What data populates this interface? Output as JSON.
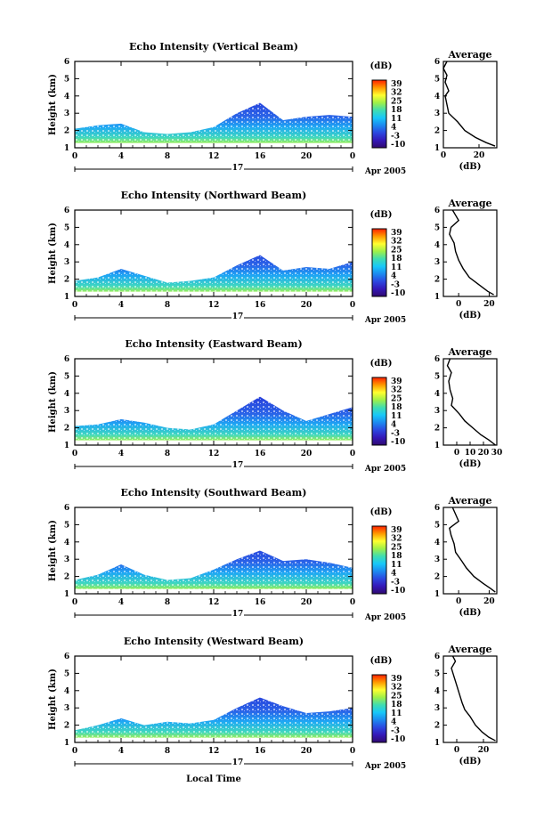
{
  "figure": {
    "x_axis_label": "Local Time",
    "date_label": "Apr 2005",
    "day_label": "17",
    "y_axis_label": "Height (km)",
    "x_ticks": [
      "0",
      "4",
      "8",
      "12",
      "16",
      "20",
      "0"
    ],
    "y_ticks": [
      "1",
      "2",
      "3",
      "4",
      "5",
      "6"
    ],
    "colorbar_unit": "(dB)",
    "colorbar_ticks": [
      "39",
      "32",
      "25",
      "18",
      "11",
      "4",
      "-3",
      "-10"
    ],
    "avg_title": "Average",
    "avg_xlabel": "(dB)"
  },
  "colors": {
    "colorbar_gradient": [
      "#ff2000",
      "#ff9a00",
      "#ffff30",
      "#9ff048",
      "#40ddb0",
      "#18c8f8",
      "#1c8af0",
      "#2c48e0",
      "#3418b8",
      "#300a70"
    ]
  },
  "chart_data": [
    {
      "type": "heatmap",
      "title": "Echo Intensity (Vertical Beam)",
      "x_range_hours": [
        0,
        24
      ],
      "ylim_km": [
        1,
        6
      ],
      "colorbar_range_db": [
        -10,
        39
      ],
      "echo_profile": [
        {
          "t": 0,
          "top_km": 2.1
        },
        {
          "t": 2,
          "top_km": 2.3
        },
        {
          "t": 4,
          "top_km": 2.4
        },
        {
          "t": 6,
          "top_km": 1.9
        },
        {
          "t": 8,
          "top_km": 1.8
        },
        {
          "t": 10,
          "top_km": 1.9
        },
        {
          "t": 12,
          "top_km": 2.2
        },
        {
          "t": 14,
          "top_km": 3.0
        },
        {
          "t": 16,
          "top_km": 3.6
        },
        {
          "t": 18,
          "top_km": 2.6
        },
        {
          "t": 20,
          "top_km": 2.8
        },
        {
          "t": 22,
          "top_km": 2.9
        },
        {
          "t": 24,
          "top_km": 2.8
        }
      ],
      "average_panel": {
        "xlim_db": [
          0,
          30
        ],
        "x_ticks": [
          "0",
          "20"
        ],
        "profile": [
          {
            "db": 2,
            "h": 6.0
          },
          {
            "db": 0,
            "h": 5.6
          },
          {
            "db": 2,
            "h": 5.2
          },
          {
            "db": 1,
            "h": 4.8
          },
          {
            "db": 3,
            "h": 4.3
          },
          {
            "db": 1,
            "h": 4.0
          },
          {
            "db": 2,
            "h": 3.5
          },
          {
            "db": 3,
            "h": 3.0
          },
          {
            "db": 8,
            "h": 2.5
          },
          {
            "db": 12,
            "h": 2.0
          },
          {
            "db": 18,
            "h": 1.6
          },
          {
            "db": 24,
            "h": 1.3
          },
          {
            "db": 29,
            "h": 1.1
          }
        ]
      }
    },
    {
      "type": "heatmap",
      "title": "Echo Intensity (Northward Beam)",
      "x_range_hours": [
        0,
        24
      ],
      "ylim_km": [
        1,
        6
      ],
      "colorbar_range_db": [
        -10,
        39
      ],
      "colorbar_ticks": [
        "39",
        "32",
        "25",
        "18",
        "11",
        "4",
        "-3",
        "-10"
      ],
      "echo_profile": [
        {
          "t": 0,
          "top_km": 1.9
        },
        {
          "t": 2,
          "top_km": 2.1
        },
        {
          "t": 4,
          "top_km": 2.6
        },
        {
          "t": 6,
          "top_km": 2.2
        },
        {
          "t": 8,
          "top_km": 1.8
        },
        {
          "t": 10,
          "top_km": 1.9
        },
        {
          "t": 12,
          "top_km": 2.1
        },
        {
          "t": 14,
          "top_km": 2.8
        },
        {
          "t": 16,
          "top_km": 3.4
        },
        {
          "t": 18,
          "top_km": 2.5
        },
        {
          "t": 20,
          "top_km": 2.7
        },
        {
          "t": 22,
          "top_km": 2.6
        },
        {
          "t": 24,
          "top_km": 3.0
        }
      ],
      "average_panel": {
        "xlim_db": [
          -10,
          25
        ],
        "x_ticks": [
          "0",
          "20"
        ],
        "profile": [
          {
            "db": -4,
            "h": 6.0
          },
          {
            "db": -2,
            "h": 5.7
          },
          {
            "db": 0,
            "h": 5.4
          },
          {
            "db": -5,
            "h": 5.0
          },
          {
            "db": -6,
            "h": 4.6
          },
          {
            "db": -3,
            "h": 4.1
          },
          {
            "db": -2,
            "h": 3.6
          },
          {
            "db": 0,
            "h": 3.1
          },
          {
            "db": 3,
            "h": 2.6
          },
          {
            "db": 7,
            "h": 2.1
          },
          {
            "db": 13,
            "h": 1.7
          },
          {
            "db": 19,
            "h": 1.3
          },
          {
            "db": 23,
            "h": 1.1
          }
        ]
      }
    },
    {
      "type": "heatmap",
      "title": "Echo Intensity (Eastward Beam)",
      "x_range_hours": [
        0,
        24
      ],
      "ylim_km": [
        1,
        6
      ],
      "colorbar_range_db": [
        -10,
        39
      ],
      "colorbar_ticks": [
        "39",
        "32",
        "25",
        "18",
        "11",
        "4",
        "-3",
        "-10"
      ],
      "echo_profile": [
        {
          "t": 0,
          "top_km": 2.1
        },
        {
          "t": 2,
          "top_km": 2.2
        },
        {
          "t": 4,
          "top_km": 2.5
        },
        {
          "t": 6,
          "top_km": 2.3
        },
        {
          "t": 8,
          "top_km": 2.0
        },
        {
          "t": 10,
          "top_km": 1.9
        },
        {
          "t": 12,
          "top_km": 2.2
        },
        {
          "t": 14,
          "top_km": 3.0
        },
        {
          "t": 16,
          "top_km": 3.8
        },
        {
          "t": 18,
          "top_km": 3.0
        },
        {
          "t": 20,
          "top_km": 2.4
        },
        {
          "t": 22,
          "top_km": 2.8
        },
        {
          "t": 24,
          "top_km": 3.2
        }
      ],
      "average_panel": {
        "xlim_db": [
          -10,
          30
        ],
        "x_ticks": [
          "0",
          "10",
          "20",
          "30"
        ],
        "profile": [
          {
            "db": -5,
            "h": 6.0
          },
          {
            "db": -7,
            "h": 5.6
          },
          {
            "db": -4,
            "h": 5.2
          },
          {
            "db": -6,
            "h": 4.7
          },
          {
            "db": -5,
            "h": 4.2
          },
          {
            "db": -3,
            "h": 3.7
          },
          {
            "db": -4,
            "h": 3.3
          },
          {
            "db": 2,
            "h": 2.8
          },
          {
            "db": 6,
            "h": 2.4
          },
          {
            "db": 12,
            "h": 2.0
          },
          {
            "db": 18,
            "h": 1.6
          },
          {
            "db": 24,
            "h": 1.3
          },
          {
            "db": 29,
            "h": 1.0
          }
        ]
      }
    },
    {
      "type": "heatmap",
      "title": "Echo Intensity (Southward Beam)",
      "x_range_hours": [
        0,
        24
      ],
      "ylim_km": [
        1,
        6
      ],
      "colorbar_range_db": [
        -10,
        39
      ],
      "colorbar_ticks": [
        "39",
        "32",
        "25",
        "18",
        "11",
        "4",
        "-3",
        "-10"
      ],
      "echo_profile": [
        {
          "t": 0,
          "top_km": 1.8
        },
        {
          "t": 2,
          "top_km": 2.1
        },
        {
          "t": 4,
          "top_km": 2.7
        },
        {
          "t": 6,
          "top_km": 2.1
        },
        {
          "t": 8,
          "top_km": 1.8
        },
        {
          "t": 10,
          "top_km": 1.9
        },
        {
          "t": 12,
          "top_km": 2.4
        },
        {
          "t": 14,
          "top_km": 3.0
        },
        {
          "t": 16,
          "top_km": 3.5
        },
        {
          "t": 18,
          "top_km": 2.9
        },
        {
          "t": 20,
          "top_km": 3.0
        },
        {
          "t": 22,
          "top_km": 2.8
        },
        {
          "t": 24,
          "top_km": 2.5
        }
      ],
      "average_panel": {
        "xlim_db": [
          -10,
          25
        ],
        "x_ticks": [
          "0",
          "20"
        ],
        "profile": [
          {
            "db": -4,
            "h": 6.0
          },
          {
            "db": -2,
            "h": 5.6
          },
          {
            "db": 0,
            "h": 5.2
          },
          {
            "db": -6,
            "h": 4.8
          },
          {
            "db": -5,
            "h": 4.4
          },
          {
            "db": -3,
            "h": 3.9
          },
          {
            "db": -2,
            "h": 3.4
          },
          {
            "db": 2,
            "h": 2.9
          },
          {
            "db": 5,
            "h": 2.5
          },
          {
            "db": 10,
            "h": 2.0
          },
          {
            "db": 16,
            "h": 1.6
          },
          {
            "db": 21,
            "h": 1.3
          },
          {
            "db": 24,
            "h": 1.1
          }
        ]
      }
    },
    {
      "type": "heatmap",
      "title": "Echo Intensity (Westward Beam)",
      "x_range_hours": [
        0,
        24
      ],
      "ylim_km": [
        1,
        6
      ],
      "colorbar_range_db": [
        -10,
        39
      ],
      "colorbar_ticks": [
        "39",
        "32",
        "25",
        "18",
        "11",
        "4",
        "-3",
        "-10"
      ],
      "echo_profile": [
        {
          "t": 0,
          "top_km": 1.7
        },
        {
          "t": 2,
          "top_km": 2.0
        },
        {
          "t": 4,
          "top_km": 2.4
        },
        {
          "t": 6,
          "top_km": 2.0
        },
        {
          "t": 8,
          "top_km": 2.2
        },
        {
          "t": 10,
          "top_km": 2.1
        },
        {
          "t": 12,
          "top_km": 2.3
        },
        {
          "t": 14,
          "top_km": 3.0
        },
        {
          "t": 16,
          "top_km": 3.6
        },
        {
          "t": 18,
          "top_km": 3.1
        },
        {
          "t": 20,
          "top_km": 2.7
        },
        {
          "t": 22,
          "top_km": 2.8
        },
        {
          "t": 24,
          "top_km": 3.0
        }
      ],
      "average_panel": {
        "xlim_db": [
          -10,
          30
        ],
        "x_ticks": [
          "0",
          "20"
        ],
        "profile": [
          {
            "db": -3,
            "h": 6.0
          },
          {
            "db": -1,
            "h": 5.7
          },
          {
            "db": -4,
            "h": 5.3
          },
          {
            "db": -2,
            "h": 4.8
          },
          {
            "db": 0,
            "h": 4.3
          },
          {
            "db": 2,
            "h": 3.8
          },
          {
            "db": 4,
            "h": 3.3
          },
          {
            "db": 6,
            "h": 2.9
          },
          {
            "db": 10,
            "h": 2.5
          },
          {
            "db": 14,
            "h": 2.0
          },
          {
            "db": 19,
            "h": 1.6
          },
          {
            "db": 24,
            "h": 1.3
          },
          {
            "db": 29,
            "h": 1.1
          }
        ]
      }
    }
  ]
}
